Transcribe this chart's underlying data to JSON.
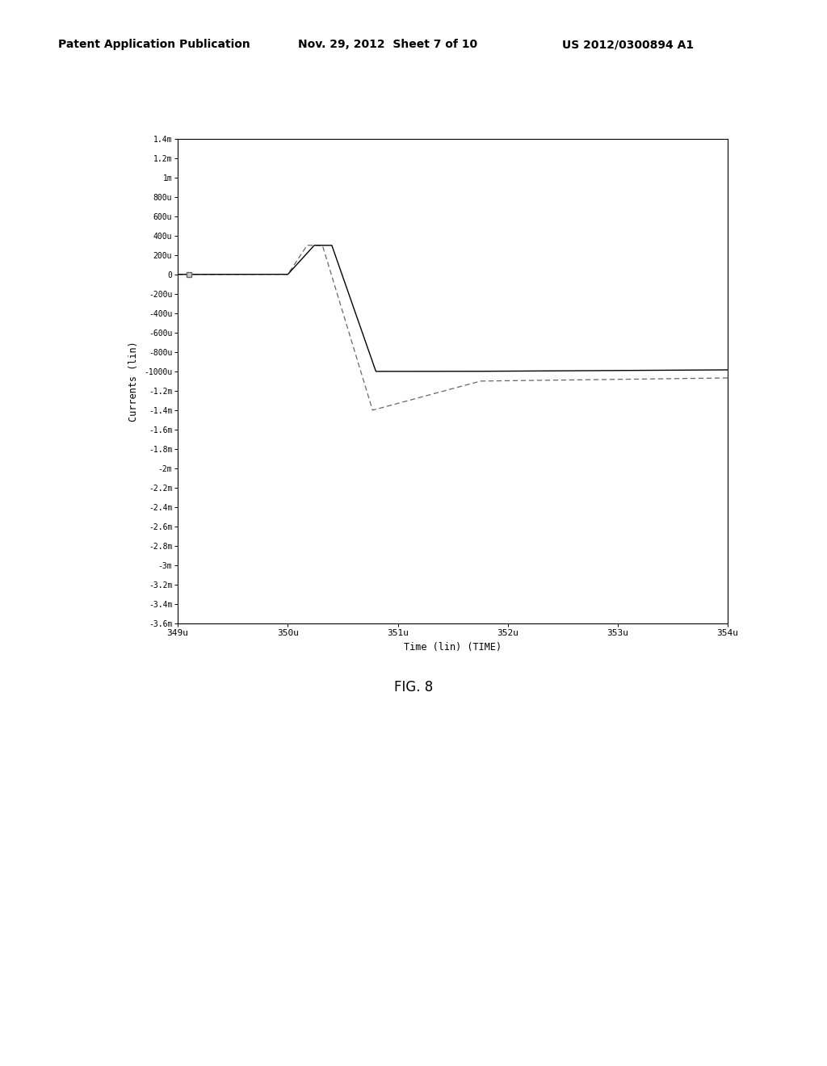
{
  "header_left": "Patent Application Publication",
  "header_mid": "Nov. 29, 2012  Sheet 7 of 10",
  "header_right": "US 2012/0300894 A1",
  "fig_label": "FIG. 8",
  "xlabel": "Time (lin) (TIME)",
  "ylabel": "Currents (lin)",
  "xmin": 0.000349,
  "xmax": 0.000354,
  "ymin": -0.0036,
  "ymax": 0.0014,
  "ytick_vals": [
    0.0014,
    0.0012,
    0.001,
    0.0008,
    0.0006,
    0.0004,
    0.0002,
    0,
    -0.0002,
    -0.0004,
    -0.0006,
    -0.0008,
    -0.001,
    -0.0012,
    -0.0014,
    -0.0016,
    -0.0018,
    -0.002,
    -0.0022,
    -0.0024,
    -0.0026,
    -0.0028,
    -0.003,
    -0.0032,
    -0.0034,
    -0.0036
  ],
  "ytick_labels": [
    "1.4m",
    "1.2m",
    "1m",
    "800u",
    "600u",
    "400u",
    "200u",
    "0",
    "-200u",
    "-400u",
    "-600u",
    "-800u",
    "-1000u",
    "-1.2m",
    "-1.4m",
    "-1.6m",
    "-1.8m",
    "-2m",
    "-2.2m",
    "-2.4m",
    "-2.6m",
    "-2.8m",
    "-3m",
    "-3.2m",
    "-3.4m",
    "-3.6m"
  ],
  "xtick_vals": [
    0.000349,
    0.00035,
    0.000351,
    0.000352,
    0.000353,
    0.000354
  ],
  "xtick_labels": [
    "349u",
    "350u",
    "351u",
    "352u",
    "353u",
    "354u"
  ],
  "bg_color": "#ffffff",
  "plot_bg": "#ffffff",
  "line_solid_color": "#000000",
  "line_dash_color": "#666666"
}
